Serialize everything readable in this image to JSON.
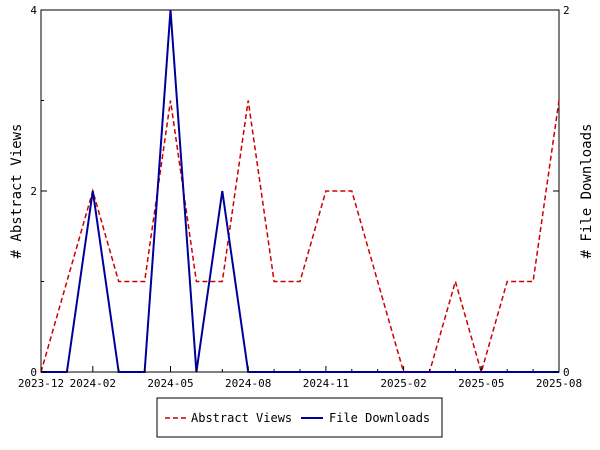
{
  "chart_data": {
    "type": "line",
    "x": [
      "2023-12",
      "2024-01",
      "2024-02",
      "2024-03",
      "2024-04",
      "2024-05",
      "2024-06",
      "2024-07",
      "2024-08",
      "2024-09",
      "2024-10",
      "2024-11",
      "2024-12",
      "2025-01",
      "2025-02",
      "2025-03",
      "2025-04",
      "2025-05",
      "2025-06",
      "2025-07",
      "2025-08"
    ],
    "x_tick_labels": [
      "2023-12",
      "2024-02",
      "2024-05",
      "2024-08",
      "2024-11",
      "2025-02",
      "2025-05",
      "2025-08"
    ],
    "series": [
      {
        "name": "Abstract Views",
        "axis": "left",
        "color": "#cc0000",
        "style": "dashed",
        "values": [
          0,
          1,
          2,
          1,
          1,
          3,
          1,
          1,
          3,
          1,
          1,
          2,
          2,
          1,
          0,
          0,
          1,
          0,
          1,
          1,
          3
        ]
      },
      {
        "name": "File Downloads",
        "axis": "right",
        "color": "#000099",
        "style": "solid",
        "values": [
          0,
          0,
          1,
          0,
          0,
          2,
          0,
          1,
          0,
          0,
          0,
          0,
          0,
          0,
          0,
          0,
          0,
          0,
          0,
          0,
          0
        ]
      }
    ],
    "ylabel_left": "# Abstract Views",
    "ylabel_right": "# File Downloads",
    "ylim_left": [
      0,
      4
    ],
    "ylim_right": [
      0,
      2
    ],
    "y_ticks_left": [
      "0",
      "2",
      "4"
    ],
    "y_ticks_right": [
      "0",
      "1",
      "2"
    ],
    "grid": false,
    "legend_position": "bottom-center"
  }
}
